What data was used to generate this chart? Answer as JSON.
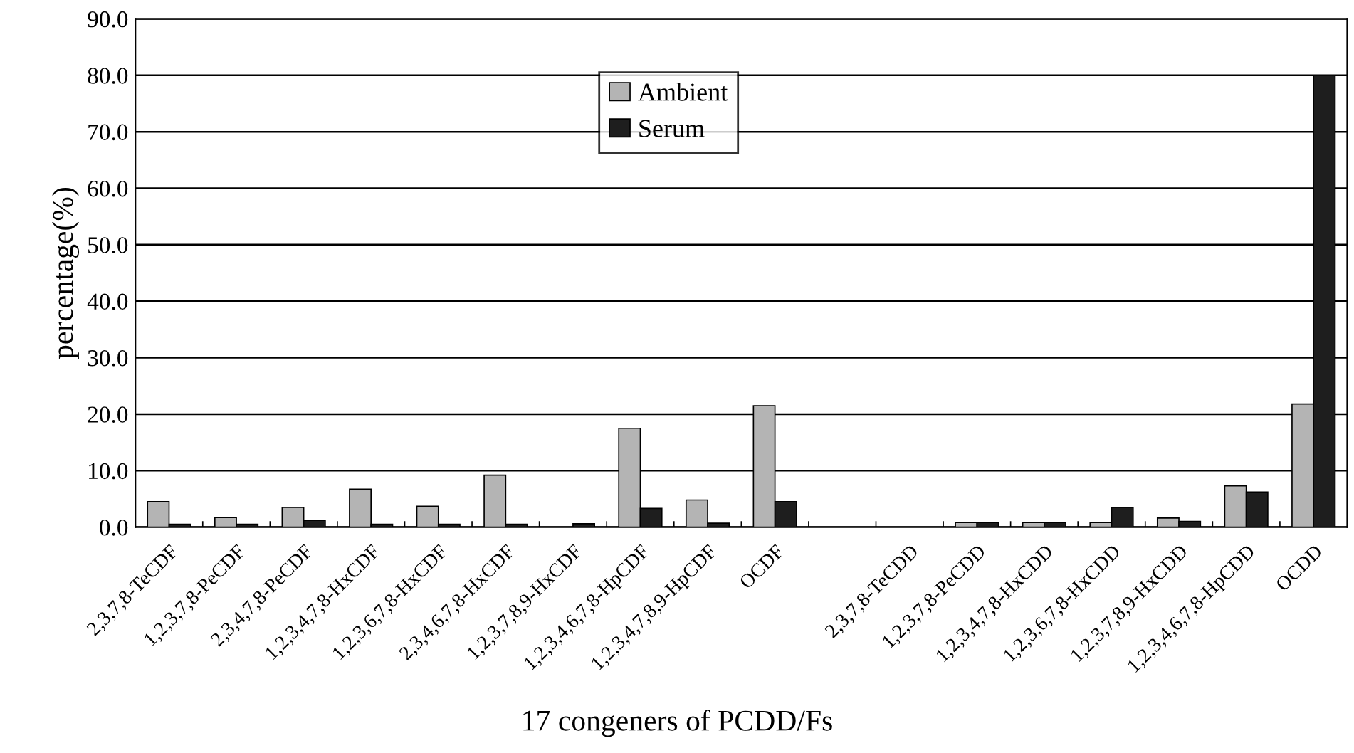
{
  "chart_data": {
    "type": "bar",
    "xlabel": "17 congeners of PCDD/Fs",
    "ylabel": "percentage(%)",
    "categories": [
      "2,3,7,8-TeCDF",
      "1,2,3,7,8-PeCDF",
      "2,3,4,7,8-PeCDF",
      "1,2,3,4,7,8-HxCDF",
      "1,2,3,6,7,8-HxCDF",
      "2,3,4,6,7,8-HxCDF",
      "1,2,3,7,8,9-HxCDF",
      "1,2,3,4,6,7,8-HpCDF",
      "1,2,3,4,7,8,9-HpCDF",
      "OCDF",
      null,
      "2,3,7,8-TeCDD",
      "1,2,3,7,8-PeCDD",
      "1,2,3,4,7,8-HxCDD",
      "1,2,3,6,7,8-HxCDD",
      "1,2,3,7,8,9-HxCDD",
      "1,2,3,4,6,7,8-HpCDD",
      "OCDD"
    ],
    "series": [
      {
        "name": "Ambient",
        "color": "#b4b4b4",
        "values": [
          4.5,
          1.7,
          3.5,
          6.7,
          3.7,
          9.2,
          null,
          17.5,
          4.8,
          21.5,
          null,
          0,
          0.8,
          0.8,
          0.8,
          1.6,
          7.3,
          21.8
        ]
      },
      {
        "name": "Serum",
        "color": "#1e1e1e",
        "values": [
          0.5,
          0.5,
          1.2,
          0.5,
          0.5,
          0.5,
          0.6,
          3.3,
          0.7,
          4.5,
          null,
          0,
          0.8,
          0.8,
          3.5,
          1.0,
          6.2,
          80.0
        ]
      }
    ],
    "ylim": [
      0,
      90
    ],
    "yticks": [
      {
        "value": 0,
        "label": "0.0"
      },
      {
        "value": 10,
        "label": "10.0"
      },
      {
        "value": 20,
        "label": "20.0"
      },
      {
        "value": 30,
        "label": "30.0"
      },
      {
        "value": 40,
        "label": "40.0"
      },
      {
        "value": 50,
        "label": "50.0"
      },
      {
        "value": 60,
        "label": "60.0"
      },
      {
        "value": 70,
        "label": "70.0"
      },
      {
        "value": 80,
        "label": "80.0"
      },
      {
        "value": 90,
        "label": "90.0"
      }
    ],
    "grid": "y",
    "legend": "top"
  }
}
